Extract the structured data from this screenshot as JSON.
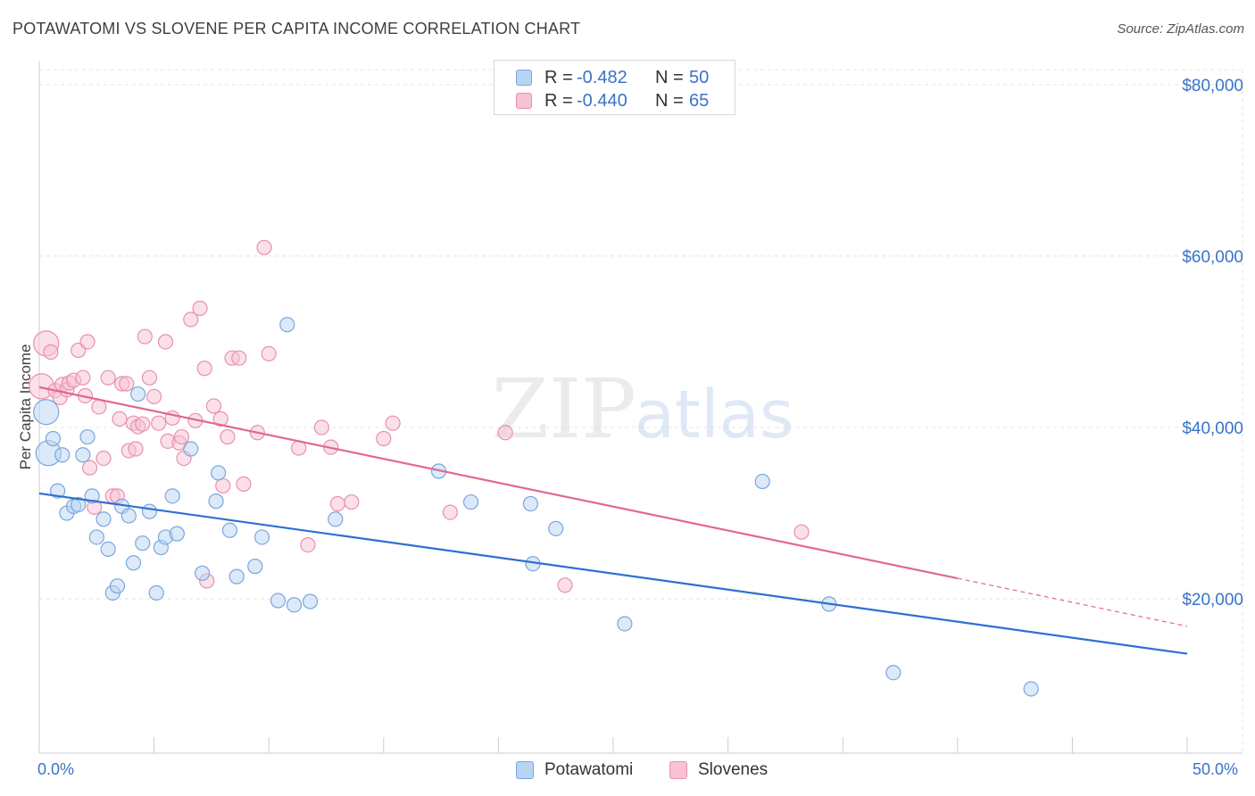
{
  "header": {
    "title": "POTAWATOMI VS SLOVENE PER CAPITA INCOME CORRELATION CHART",
    "source": "Source: ZipAtlas.com"
  },
  "watermark": {
    "zip": "ZIP",
    "atlas": "atlas"
  },
  "legend_top": [
    {
      "r_label": "R =",
      "r_value": "-0.482",
      "n_label": "N =",
      "n_value": "50"
    },
    {
      "r_label": "R =",
      "r_value": "-0.440",
      "n_label": "N =",
      "n_value": "65"
    }
  ],
  "legend_bottom": [
    "Potawatomi",
    "Slovenes"
  ],
  "axis": {
    "x_min_label": "0.0%",
    "x_max_label": "50.0%",
    "y_tick_labels": [
      "$20,000",
      "$40,000",
      "$60,000",
      "$80,000"
    ]
  },
  "colors": {
    "potawatomi_fill": "#b8d4f4",
    "potawatomi_stroke": "#7aa6dd",
    "potawatomi_line": "#2e6fd0",
    "slovenes_fill": "#f7c2d3",
    "slovenes_stroke": "#e890ae",
    "slovenes_line": "#e06893",
    "tick_label": "#3a73c8",
    "grid": "#e4e4e4"
  },
  "chart_data": {
    "type": "scatter",
    "title": "POTAWATOMI VS SLOVENE PER CAPITA INCOME CORRELATION CHART",
    "ylabel": "Per Capita Income",
    "xlabel": "",
    "xlim": [
      0,
      50
    ],
    "ylim": [
      2000,
      83000
    ],
    "y_ticks": [
      20000,
      40000,
      60000,
      80000
    ],
    "grid": true,
    "legend_placement": "top-center",
    "series": [
      {
        "name": "Potawatomi",
        "r": -0.482,
        "n": 50,
        "trend": {
          "x": [
            0,
            50
          ],
          "y": [
            32300,
            13600
          ]
        },
        "points": [
          [
            0.3,
            41800
          ],
          [
            0.4,
            37000
          ],
          [
            0.6,
            38700
          ],
          [
            0.8,
            32600
          ],
          [
            1.0,
            36800
          ],
          [
            1.2,
            30000
          ],
          [
            1.5,
            30800
          ],
          [
            1.7,
            31000
          ],
          [
            1.9,
            36800
          ],
          [
            2.1,
            38900
          ],
          [
            2.3,
            32000
          ],
          [
            2.5,
            27200
          ],
          [
            2.8,
            29300
          ],
          [
            3.0,
            25800
          ],
          [
            3.2,
            20700
          ],
          [
            3.4,
            21500
          ],
          [
            3.6,
            30800
          ],
          [
            3.9,
            29700
          ],
          [
            4.1,
            24200
          ],
          [
            4.3,
            43900
          ],
          [
            4.5,
            26500
          ],
          [
            4.8,
            30200
          ],
          [
            5.1,
            20700
          ],
          [
            5.3,
            26000
          ],
          [
            5.5,
            27200
          ],
          [
            5.8,
            32000
          ],
          [
            6.0,
            27600
          ],
          [
            6.6,
            37500
          ],
          [
            7.1,
            23000
          ],
          [
            7.7,
            31400
          ],
          [
            7.8,
            34700
          ],
          [
            8.3,
            28000
          ],
          [
            8.6,
            22600
          ],
          [
            9.4,
            23800
          ],
          [
            9.7,
            27200
          ],
          [
            10.4,
            19800
          ],
          [
            10.8,
            52000
          ],
          [
            11.1,
            19300
          ],
          [
            11.8,
            19700
          ],
          [
            12.9,
            29300
          ],
          [
            17.4,
            34900
          ],
          [
            18.8,
            31300
          ],
          [
            21.4,
            31100
          ],
          [
            21.5,
            24100
          ],
          [
            22.5,
            28200
          ],
          [
            25.5,
            17100
          ],
          [
            31.5,
            33700
          ],
          [
            34.4,
            19400
          ],
          [
            37.2,
            11400
          ],
          [
            43.2,
            9500
          ]
        ]
      },
      {
        "name": "Slovenes",
        "r": -0.44,
        "n": 65,
        "trend": {
          "x": [
            0,
            40
          ],
          "y": [
            44700,
            22400
          ]
        },
        "trend_dashed": {
          "x": [
            40,
            50
          ],
          "y": [
            22400,
            16800
          ]
        },
        "points": [
          [
            0.1,
            44800
          ],
          [
            0.3,
            49800
          ],
          [
            0.5,
            48800
          ],
          [
            0.7,
            44300
          ],
          [
            0.9,
            43500
          ],
          [
            1.0,
            45000
          ],
          [
            1.2,
            44400
          ],
          [
            1.3,
            45200
          ],
          [
            1.5,
            45500
          ],
          [
            1.7,
            49000
          ],
          [
            1.9,
            45800
          ],
          [
            2.0,
            43700
          ],
          [
            2.1,
            50000
          ],
          [
            2.2,
            35300
          ],
          [
            2.4,
            30700
          ],
          [
            2.6,
            42400
          ],
          [
            2.8,
            36400
          ],
          [
            3.0,
            45800
          ],
          [
            3.2,
            32000
          ],
          [
            3.4,
            32000
          ],
          [
            3.5,
            41000
          ],
          [
            3.6,
            45100
          ],
          [
            3.8,
            45100
          ],
          [
            3.9,
            37300
          ],
          [
            4.1,
            40500
          ],
          [
            4.2,
            37500
          ],
          [
            4.3,
            40100
          ],
          [
            4.5,
            40400
          ],
          [
            4.6,
            50600
          ],
          [
            4.8,
            45800
          ],
          [
            5.0,
            43600
          ],
          [
            5.2,
            40500
          ],
          [
            5.5,
            50000
          ],
          [
            5.6,
            38400
          ],
          [
            5.8,
            41100
          ],
          [
            6.1,
            38200
          ],
          [
            6.2,
            38900
          ],
          [
            6.3,
            36400
          ],
          [
            6.6,
            52600
          ],
          [
            6.8,
            40800
          ],
          [
            7.0,
            53900
          ],
          [
            7.2,
            46900
          ],
          [
            7.3,
            22100
          ],
          [
            7.6,
            42500
          ],
          [
            7.9,
            41000
          ],
          [
            8.0,
            33200
          ],
          [
            8.2,
            38900
          ],
          [
            8.4,
            48100
          ],
          [
            8.7,
            48100
          ],
          [
            8.9,
            33400
          ],
          [
            9.5,
            39400
          ],
          [
            9.8,
            61000
          ],
          [
            10.0,
            48600
          ],
          [
            11.3,
            37600
          ],
          [
            11.7,
            26300
          ],
          [
            12.3,
            40000
          ],
          [
            12.7,
            37700
          ],
          [
            13.0,
            31100
          ],
          [
            13.6,
            31300
          ],
          [
            15.0,
            38700
          ],
          [
            15.4,
            40500
          ],
          [
            17.9,
            30100
          ],
          [
            20.3,
            39400
          ],
          [
            22.9,
            21600
          ],
          [
            33.2,
            27800
          ]
        ]
      }
    ]
  }
}
